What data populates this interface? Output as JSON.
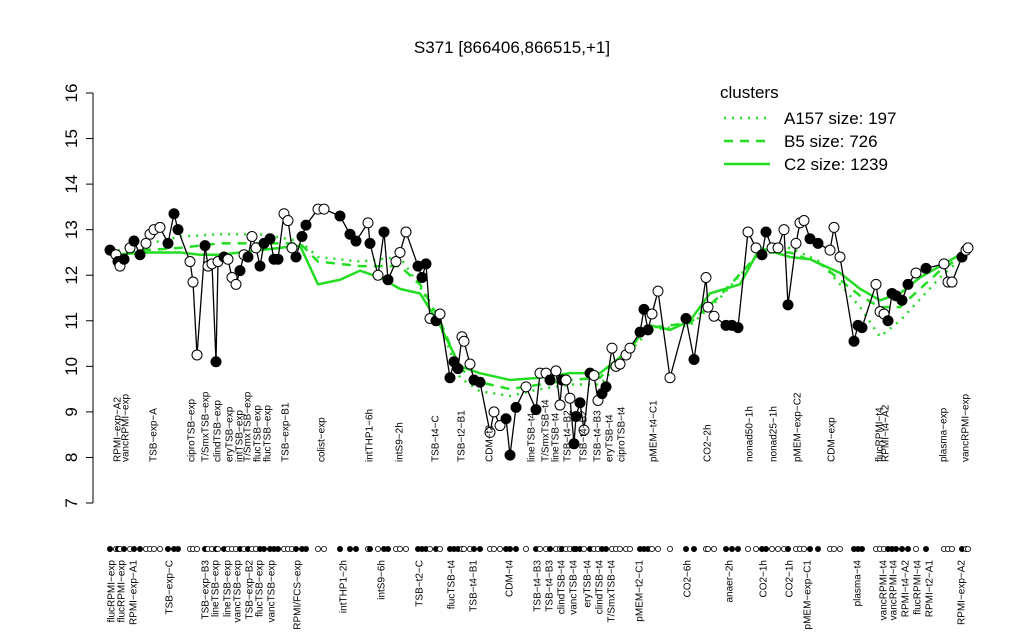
{
  "chart_data": {
    "type": "line",
    "title": "S371 [866406,866515,+1]",
    "ylim": [
      7,
      16
    ],
    "yticks": [
      7,
      8,
      9,
      10,
      11,
      12,
      13,
      14,
      15,
      16
    ],
    "xlim": [
      100,
      980
    ],
    "legend_title": "clusters",
    "legend_position": "top-right",
    "legend_color": "#22dd22",
    "points": {
      "color": "#000000",
      "x": [
        110,
        116,
        118,
        120,
        124,
        130,
        134,
        140,
        146,
        150,
        154,
        160,
        168,
        174,
        178,
        190,
        193,
        197,
        205,
        208,
        212,
        216,
        218,
        224,
        228,
        232,
        236,
        240,
        244,
        248,
        252,
        256,
        260,
        264,
        270,
        274,
        278,
        284,
        288,
        292,
        296,
        302,
        306,
        318,
        324,
        340,
        350,
        356,
        368,
        370,
        378,
        384,
        388,
        396,
        400,
        406,
        418,
        422,
        426,
        430,
        436,
        440,
        450,
        454,
        458,
        462,
        464,
        470,
        474,
        480,
        490,
        494,
        500,
        506,
        510,
        516,
        526,
        536,
        540,
        546,
        550,
        556,
        560,
        562,
        566,
        570,
        574,
        576,
        580,
        584,
        590,
        594,
        598,
        602,
        606,
        612,
        616,
        620,
        626,
        630,
        640,
        644,
        648,
        652,
        658,
        670,
        686,
        694,
        706,
        708,
        714,
        726,
        732,
        738,
        748,
        756,
        762,
        766,
        772,
        778,
        784,
        788,
        796,
        800,
        804,
        810,
        818,
        830,
        834,
        840,
        854,
        858,
        862,
        876,
        880,
        884,
        888,
        892,
        896,
        902,
        908,
        916,
        926,
        944,
        948,
        952,
        962,
        966,
        968
      ],
      "values": [
        12.55,
        12.45,
        12.3,
        12.2,
        12.35,
        12.6,
        12.75,
        12.45,
        12.7,
        12.9,
        13.0,
        13.05,
        12.7,
        13.35,
        13.0,
        12.3,
        11.85,
        10.25,
        12.65,
        12.2,
        12.25,
        10.1,
        12.3,
        12.4,
        12.35,
        11.95,
        11.8,
        12.1,
        12.45,
        12.4,
        12.85,
        12.6,
        12.2,
        12.7,
        12.8,
        12.35,
        12.35,
        13.35,
        13.2,
        12.6,
        12.4,
        12.85,
        13.1,
        13.45,
        13.45,
        13.3,
        12.9,
        12.75,
        13.15,
        12.7,
        12.0,
        12.95,
        11.9,
        12.3,
        12.5,
        12.95,
        12.2,
        11.95,
        12.25,
        11.05,
        11.0,
        11.15,
        9.75,
        10.1,
        9.95,
        10.65,
        10.55,
        10.05,
        9.7,
        9.65,
        8.55,
        9.0,
        8.7,
        8.85,
        8.05,
        9.1,
        9.55,
        9.05,
        9.85,
        9.85,
        9.7,
        9.9,
        9.15,
        9.7,
        9.7,
        9.3,
        8.3,
        8.9,
        9.2,
        8.6,
        9.85,
        9.8,
        9.25,
        9.4,
        9.55,
        10.4,
        10.0,
        10.05,
        10.25,
        10.4,
        10.75,
        11.25,
        10.8,
        11.15,
        11.65,
        9.75,
        11.05,
        10.15,
        11.95,
        11.3,
        11.1,
        10.9,
        10.9,
        10.85,
        12.95,
        12.6,
        12.45,
        12.95,
        12.6,
        12.6,
        13.0,
        11.35,
        12.7,
        13.15,
        13.2,
        12.8,
        12.7,
        12.55,
        13.05,
        12.4,
        10.55,
        10.9,
        10.85,
        11.8,
        11.2,
        11.15,
        11.0,
        11.6,
        11.55,
        11.45,
        11.8,
        12.05,
        12.15,
        12.25,
        11.85,
        11.85,
        12.4,
        12.55,
        12.6
      ],
      "filled": [
        true,
        false,
        true,
        false,
        true,
        false,
        true,
        true,
        false,
        false,
        false,
        false,
        true,
        true,
        true,
        false,
        false,
        false,
        true,
        false,
        false,
        true,
        false,
        true,
        false,
        false,
        false,
        true,
        false,
        true,
        false,
        false,
        true,
        true,
        true,
        true,
        true,
        false,
        false,
        false,
        true,
        true,
        true,
        false,
        false,
        true,
        true,
        true,
        false,
        true,
        false,
        true,
        true,
        false,
        false,
        false,
        true,
        true,
        true,
        false,
        true,
        false,
        true,
        true,
        true,
        false,
        false,
        false,
        true,
        true,
        false,
        false,
        false,
        true,
        true,
        true,
        false,
        true,
        false,
        false,
        true,
        false,
        false,
        true,
        false,
        false,
        true,
        true,
        true,
        false,
        true,
        false,
        false,
        true,
        true,
        false,
        false,
        false,
        false,
        false,
        true,
        true,
        true,
        false,
        false,
        false,
        true,
        true,
        false,
        false,
        false,
        true,
        true,
        true,
        false,
        false,
        true,
        true,
        false,
        false,
        false,
        true,
        false,
        false,
        false,
        true,
        true,
        false,
        false,
        false,
        true,
        true,
        true,
        false,
        false,
        false,
        true,
        true,
        true,
        true,
        true,
        false,
        true,
        false,
        false,
        false,
        true,
        false,
        false
      ]
    },
    "series": [
      {
        "name": "A157 size: 197",
        "color": "#22dd22",
        "style": "dotted",
        "x": [
          110,
          180,
          220,
          260,
          300,
          318,
          360,
          400,
          420,
          440,
          460,
          480,
          510,
          540,
          570,
          600,
          620,
          650,
          690,
          720,
          760,
          790,
          820,
          860,
          880,
          900,
          940,
          968
        ],
        "values": [
          12.5,
          12.85,
          12.9,
          12.9,
          12.75,
          12.4,
          12.3,
          12.4,
          11.75,
          10.9,
          9.75,
          9.45,
          9.35,
          9.5,
          9.6,
          9.6,
          10.1,
          10.8,
          10.9,
          11.5,
          12.5,
          12.6,
          12.3,
          11.3,
          10.65,
          11.0,
          11.95,
          12.5
        ]
      },
      {
        "name": "B5 size: 726",
        "color": "#22dd22",
        "style": "dashed",
        "x": [
          110,
          180,
          220,
          260,
          300,
          318,
          360,
          400,
          420,
          440,
          460,
          480,
          510,
          540,
          570,
          600,
          620,
          650,
          690,
          720,
          760,
          790,
          820,
          860,
          880,
          900,
          940,
          968
        ],
        "values": [
          12.5,
          12.6,
          12.7,
          12.7,
          12.7,
          12.3,
          12.2,
          12.2,
          11.8,
          11.0,
          9.95,
          9.65,
          9.5,
          9.6,
          9.7,
          9.75,
          10.2,
          10.85,
          10.95,
          11.55,
          12.5,
          12.5,
          12.25,
          11.55,
          11.3,
          11.3,
          12.1,
          12.5
        ]
      },
      {
        "name": "C2 size: 1239",
        "color": "#22dd22",
        "style": "solid",
        "x": [
          110,
          150,
          180,
          200,
          220,
          260,
          300,
          318,
          340,
          360,
          380,
          400,
          420,
          440,
          460,
          480,
          510,
          540,
          570,
          600,
          620,
          650,
          670,
          690,
          710,
          740,
          760,
          790,
          810,
          840,
          860,
          880,
          900,
          920,
          940,
          968
        ],
        "values": [
          12.45,
          12.5,
          12.5,
          12.45,
          12.45,
          12.55,
          12.65,
          11.8,
          11.9,
          12.1,
          11.95,
          11.7,
          11.6,
          10.9,
          10.0,
          9.85,
          9.7,
          9.75,
          9.85,
          9.85,
          10.2,
          10.9,
          10.8,
          11.0,
          11.6,
          11.8,
          12.6,
          12.4,
          12.35,
          12.05,
          11.7,
          11.45,
          11.6,
          11.95,
          12.2,
          12.55
        ]
      }
    ],
    "labels_top": [
      {
        "x": 118,
        "label": "RPMI−exp−A2"
      },
      {
        "x": 126,
        "label": "vancRPMI−exp"
      },
      {
        "x": 154,
        "label": "TSB−exp−A"
      },
      {
        "x": 192,
        "label": "ciproTSB−exp"
      },
      {
        "x": 206,
        "label": "T/SmxTSB−exp"
      },
      {
        "x": 218,
        "label": "clindTSB−exp"
      },
      {
        "x": 230,
        "label": "eryTSB−exp"
      },
      {
        "x": 240,
        "label": "intTSB−exp"
      },
      {
        "x": 248,
        "label": "T/SmxTSB−exp"
      },
      {
        "x": 258,
        "label": "flucTSB−exp"
      },
      {
        "x": 268,
        "label": "flucTSB−exp"
      },
      {
        "x": 286,
        "label": "TSB−exp−B1"
      },
      {
        "x": 322,
        "label": "colist−exp"
      },
      {
        "x": 370,
        "label": "intTHP1−6h"
      },
      {
        "x": 400,
        "label": "intS9−2h"
      },
      {
        "x": 436,
        "label": "TSB−t4−C"
      },
      {
        "x": 462,
        "label": "TSB−t2−B1"
      },
      {
        "x": 490,
        "label": "CDM−t2"
      },
      {
        "x": 532,
        "label": "lineTSB−t4"
      },
      {
        "x": 546,
        "label": "T/SmxTSB−t4"
      },
      {
        "x": 556,
        "label": "lineTSB−t4"
      },
      {
        "x": 568,
        "label": "TSB−t4−B2"
      },
      {
        "x": 584,
        "label": "TSB−t4−B2"
      },
      {
        "x": 598,
        "label": "TSB−t4−B3"
      },
      {
        "x": 610,
        "label": "eryTSB−t4"
      },
      {
        "x": 622,
        "label": "ciproTSB−t4"
      },
      {
        "x": 654,
        "label": "pMEM−t4−C1"
      },
      {
        "x": 708,
        "label": "CO2−2h"
      },
      {
        "x": 750,
        "label": "nonad50−1h"
      },
      {
        "x": 774,
        "label": "nonad25−1h"
      },
      {
        "x": 798,
        "label": "pMEM−exp−C2"
      },
      {
        "x": 832,
        "label": "CDM−exp"
      },
      {
        "x": 880,
        "label": "flucRPMI−t4"
      },
      {
        "x": 886,
        "label": "RPMI−t4−A2"
      },
      {
        "x": 944,
        "label": "plasma−exp"
      },
      {
        "x": 966,
        "label": "vancRPMI−exp"
      }
    ],
    "labels_bottom": [
      {
        "x": 112,
        "label": "flucRPMI−exp"
      },
      {
        "x": 122,
        "label": "flucRPMI−exp"
      },
      {
        "x": 134,
        "label": "RPMI−exp−A1"
      },
      {
        "x": 170,
        "label": "TSB−exp−C"
      },
      {
        "x": 206,
        "label": "TSB−exp−B3"
      },
      {
        "x": 216,
        "label": "lineTSB−exp"
      },
      {
        "x": 228,
        "label": "lineTSB−exp"
      },
      {
        "x": 238,
        "label": "vancTSB−exp"
      },
      {
        "x": 250,
        "label": "TSB−exp−B2"
      },
      {
        "x": 260,
        "label": "flucTSB−exp"
      },
      {
        "x": 272,
        "label": "vancTSB−exp"
      },
      {
        "x": 298,
        "label": "RPMI/FCS−exp"
      },
      {
        "x": 344,
        "label": "intTHP1−2h"
      },
      {
        "x": 382,
        "label": "intS9−6h"
      },
      {
        "x": 420,
        "label": "TSB−t2−C"
      },
      {
        "x": 452,
        "label": "flucTSB−t4"
      },
      {
        "x": 474,
        "label": "TSB−t4−B1"
      },
      {
        "x": 510,
        "label": "CDM−t4"
      },
      {
        "x": 538,
        "label": "TSB−t4−B3"
      },
      {
        "x": 550,
        "label": "TSB−t4−B3"
      },
      {
        "x": 562,
        "label": "clindTSB−t4"
      },
      {
        "x": 574,
        "label": "vancTSB−t4"
      },
      {
        "x": 588,
        "label": "eryTSB−t4"
      },
      {
        "x": 600,
        "label": "clindTSB−t4"
      },
      {
        "x": 612,
        "label": "T/SmxTSB−t4"
      },
      {
        "x": 640,
        "label": "pMEM−t2−C1"
      },
      {
        "x": 688,
        "label": "CO2−6h"
      },
      {
        "x": 730,
        "label": "anaer−2h"
      },
      {
        "x": 764,
        "label": "CO2−1h"
      },
      {
        "x": 790,
        "label": "CO2−1h"
      },
      {
        "x": 808,
        "label": "pMEM−exp−C1"
      },
      {
        "x": 858,
        "label": "plasma−t4"
      },
      {
        "x": 884,
        "label": "vancRPMI−t4"
      },
      {
        "x": 894,
        "label": "vancRPMI−t4"
      },
      {
        "x": 906,
        "label": "RPMI−t4−A2"
      },
      {
        "x": 918,
        "label": "flucRPMI−t4"
      },
      {
        "x": 930,
        "label": "RPMI−t2−A1"
      },
      {
        "x": 962,
        "label": "RPMI−exp−A2"
      }
    ]
  }
}
